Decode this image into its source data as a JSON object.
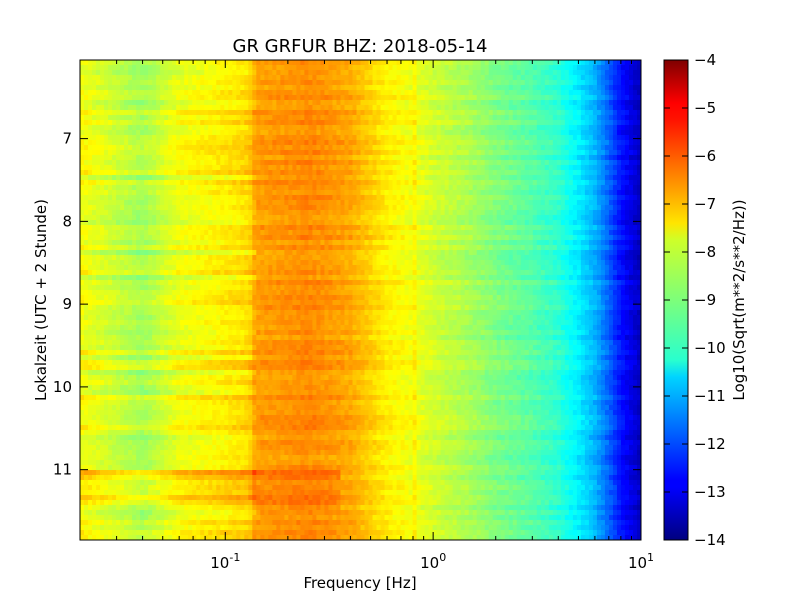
{
  "chart_data": {
    "type": "heatmap",
    "title": "GR GRFUR BHZ: 2018-05-14",
    "xlabel": "Frequency [Hz]",
    "ylabel": "Lokalzeit (UTC + 2 Stunde)",
    "colorbar_label": "Log10(Sqrt(m**2/s**2/Hz))",
    "x_scale": "log",
    "xlim": [
      0.02,
      10
    ],
    "ylim": [
      11.85,
      6.05
    ],
    "y_inverted": true,
    "clim": [
      -14,
      -4
    ],
    "colormap": "jet",
    "x_tick_labels": [
      {
        "base": "10",
        "exp": "-1",
        "value": 0.1
      },
      {
        "base": "10",
        "exp": "0",
        "value": 1
      },
      {
        "base": "10",
        "exp": "1",
        "value": 10
      }
    ],
    "y_ticks": [
      7,
      8,
      9,
      10,
      11
    ],
    "y_tick_labels": [
      "7",
      "8",
      "9",
      "10",
      "11"
    ],
    "colorbar_ticks": [
      -4,
      -5,
      -6,
      -7,
      -8,
      -9,
      -10,
      -11,
      -12,
      -13,
      -14
    ],
    "colorbar_tick_labels": [
      "−4",
      "−5",
      "−6",
      "−7",
      "−8",
      "−9",
      "−10",
      "−11",
      "−12",
      "−13",
      "−14"
    ],
    "spectrum_profile": {
      "frequency_hz": [
        0.02,
        0.04,
        0.06,
        0.1,
        0.13,
        0.14,
        0.2,
        0.25,
        0.3,
        0.4,
        0.5,
        0.6,
        0.8,
        1.0,
        1.5,
        2.0,
        3.0,
        4.0,
        5.0,
        6.0,
        7.0,
        8.0,
        10.0
      ],
      "log10_amplitude": [
        -7.8,
        -8.6,
        -7.9,
        -7.6,
        -7.4,
        -6.8,
        -6.7,
        -6.6,
        -6.7,
        -6.9,
        -7.3,
        -7.6,
        -7.9,
        -8.2,
        -8.6,
        -9.0,
        -9.4,
        -9.8,
        -10.4,
        -11.0,
        -11.8,
        -12.6,
        -13.4
      ]
    },
    "notable_features": [
      {
        "time_hours": 11.07,
        "description": "stronger band at low frequencies"
      },
      {
        "time_hours": 11.35,
        "description": "elevated low-frequency energy"
      },
      {
        "frequency_hz": 0.82,
        "description": "narrow vertical line"
      }
    ],
    "grid": false
  }
}
